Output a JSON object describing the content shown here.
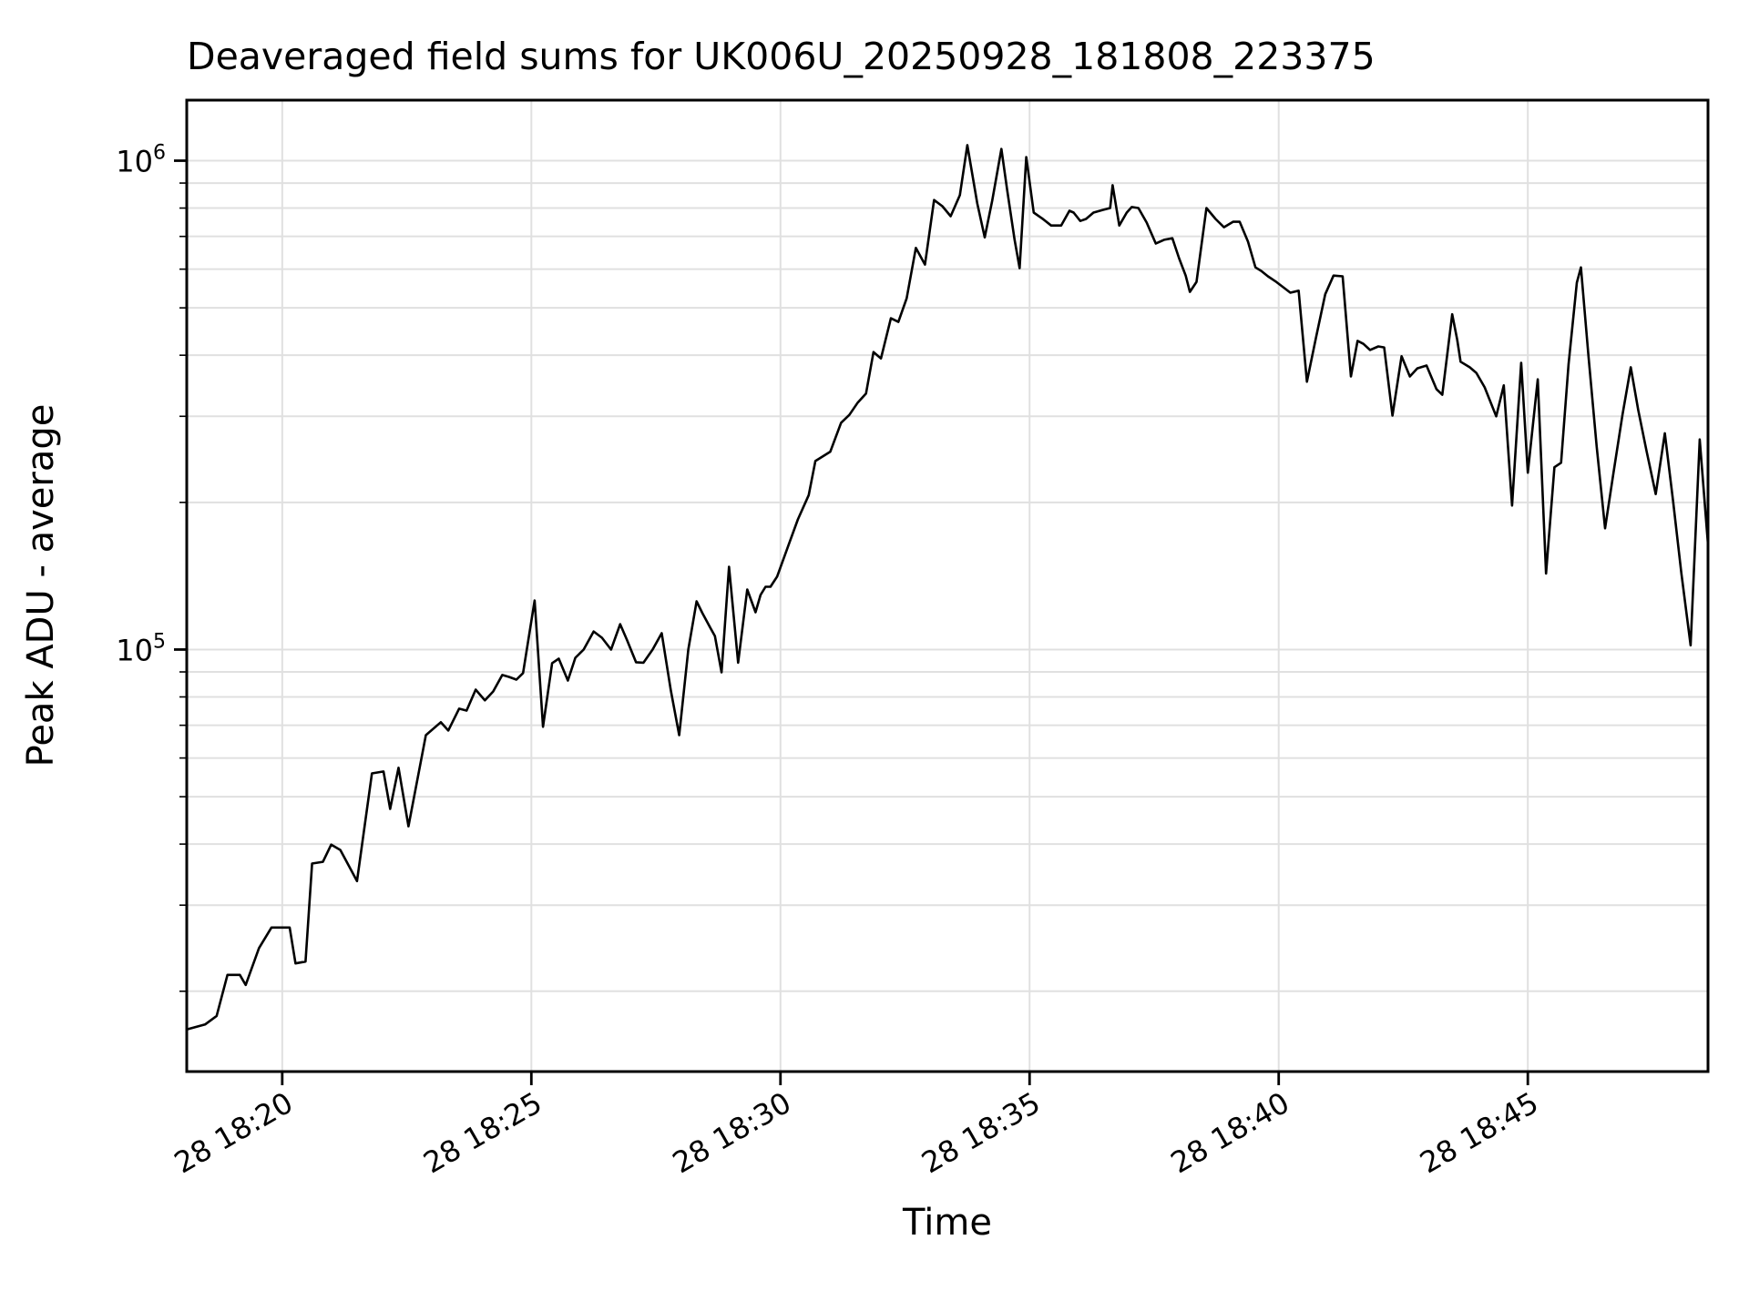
{
  "chart_data": {
    "type": "line",
    "title": "Deaveraged field sums for UK006U_20250928_181808_223375",
    "xlabel": "Time",
    "ylabel": "Peak ADU - average",
    "y_scale": "log",
    "grid": true,
    "legend_position": "none",
    "line_color": "#000000",
    "grid_color": "#e0e0e0",
    "spine_color": "#000000",
    "t_unit": "seconds after 18:00, day 28",
    "xlim": [
      1085,
      2917
    ],
    "ylim": [
      13700,
      1330000
    ],
    "x_ticks": [
      {
        "t": 1200,
        "label": "28 18:20"
      },
      {
        "t": 1500,
        "label": "28 18:25"
      },
      {
        "t": 1800,
        "label": "28 18:30"
      },
      {
        "t": 2100,
        "label": "28 18:35"
      },
      {
        "t": 2400,
        "label": "28 18:40"
      },
      {
        "t": 2700,
        "label": "28 18:45"
      }
    ],
    "y_ticks": [
      {
        "value": 100000,
        "base": "10",
        "exp": "5"
      },
      {
        "value": 1000000,
        "base": "10",
        "exp": "6"
      }
    ],
    "series": [
      {
        "name": "peak-adu-average",
        "points": [
          [
            1085,
            16700
          ],
          [
            1107,
            17100
          ],
          [
            1121,
            17800
          ],
          [
            1134,
            21600
          ],
          [
            1149,
            21600
          ],
          [
            1156,
            20600
          ],
          [
            1172,
            24500
          ],
          [
            1187,
            27000
          ],
          [
            1209,
            27000
          ],
          [
            1216,
            22800
          ],
          [
            1228,
            23000
          ],
          [
            1236,
            36500
          ],
          [
            1249,
            36800
          ],
          [
            1259,
            39900
          ],
          [
            1270,
            38900
          ],
          [
            1290,
            33600
          ],
          [
            1308,
            55800
          ],
          [
            1322,
            56300
          ],
          [
            1330,
            47200
          ],
          [
            1340,
            57300
          ],
          [
            1352,
            43500
          ],
          [
            1373,
            66800
          ],
          [
            1391,
            71000
          ],
          [
            1400,
            68300
          ],
          [
            1413,
            75700
          ],
          [
            1422,
            75000
          ],
          [
            1433,
            82800
          ],
          [
            1444,
            78700
          ],
          [
            1454,
            82100
          ],
          [
            1465,
            88700
          ],
          [
            1473,
            87900
          ],
          [
            1482,
            86800
          ],
          [
            1490,
            89500
          ],
          [
            1504,
            126000
          ],
          [
            1514,
            69500
          ],
          [
            1525,
            93800
          ],
          [
            1533,
            95800
          ],
          [
            1544,
            86400
          ],
          [
            1553,
            96200
          ],
          [
            1563,
            100000
          ],
          [
            1575,
            108900
          ],
          [
            1585,
            105700
          ],
          [
            1596,
            100000
          ],
          [
            1607,
            112700
          ],
          [
            1615,
            104800
          ],
          [
            1626,
            94200
          ],
          [
            1635,
            94000
          ],
          [
            1646,
            100000
          ],
          [
            1657,
            108000
          ],
          [
            1668,
            82500
          ],
          [
            1678,
            66800
          ],
          [
            1689,
            100000
          ],
          [
            1699,
            125500
          ],
          [
            1706,
            118700
          ],
          [
            1716,
            110400
          ],
          [
            1721,
            106600
          ],
          [
            1729,
            89800
          ],
          [
            1738,
            147700
          ],
          [
            1749,
            94000
          ],
          [
            1760,
            132700
          ],
          [
            1770,
            119200
          ],
          [
            1776,
            129300
          ],
          [
            1782,
            134400
          ],
          [
            1788,
            134400
          ],
          [
            1796,
            141000
          ],
          [
            1809,
            162400
          ],
          [
            1821,
            184600
          ],
          [
            1834,
            207000
          ],
          [
            1842,
            243000
          ],
          [
            1860,
            254000
          ],
          [
            1873,
            291000
          ],
          [
            1883,
            302000
          ],
          [
            1893,
            320000
          ],
          [
            1903,
            334000
          ],
          [
            1912,
            406000
          ],
          [
            1921,
            394000
          ],
          [
            1933,
            476000
          ],
          [
            1942,
            468000
          ],
          [
            1952,
            523000
          ],
          [
            1963,
            663000
          ],
          [
            1974,
            613000
          ],
          [
            1985,
            831000
          ],
          [
            1995,
            807000
          ],
          [
            2005,
            770000
          ],
          [
            2016,
            850000
          ],
          [
            2025,
            1076000
          ],
          [
            2037,
            818000
          ],
          [
            2046,
            697000
          ],
          [
            2055,
            828000
          ],
          [
            2066,
            1057000
          ],
          [
            2073,
            872000
          ],
          [
            2082,
            689000
          ],
          [
            2088,
            603000
          ],
          [
            2096,
            1017000
          ],
          [
            2105,
            783000
          ],
          [
            2116,
            760000
          ],
          [
            2126,
            737000
          ],
          [
            2138,
            737000
          ],
          [
            2148,
            790000
          ],
          [
            2153,
            783000
          ],
          [
            2161,
            753000
          ],
          [
            2168,
            760000
          ],
          [
            2177,
            783000
          ],
          [
            2188,
            793000
          ],
          [
            2197,
            800000
          ],
          [
            2200,
            891000
          ],
          [
            2208,
            737000
          ],
          [
            2217,
            783000
          ],
          [
            2223,
            804000
          ],
          [
            2231,
            800000
          ],
          [
            2241,
            747000
          ],
          [
            2252,
            677000
          ],
          [
            2262,
            689000
          ],
          [
            2272,
            694000
          ],
          [
            2280,
            632000
          ],
          [
            2288,
            582000
          ],
          [
            2293,
            539000
          ],
          [
            2301,
            565000
          ],
          [
            2313,
            800000
          ],
          [
            2324,
            760000
          ],
          [
            2334,
            731000
          ],
          [
            2345,
            750000
          ],
          [
            2353,
            750000
          ],
          [
            2363,
            683000
          ],
          [
            2372,
            605000
          ],
          [
            2379,
            595000
          ],
          [
            2387,
            580000
          ],
          [
            2397,
            565000
          ],
          [
            2406,
            550000
          ],
          [
            2414,
            537000
          ],
          [
            2424,
            542000
          ],
          [
            2434,
            353000
          ],
          [
            2445,
            435000
          ],
          [
            2456,
            533000
          ],
          [
            2466,
            582000
          ],
          [
            2477,
            580000
          ],
          [
            2487,
            362000
          ],
          [
            2495,
            428000
          ],
          [
            2502,
            422000
          ],
          [
            2510,
            410000
          ],
          [
            2520,
            417000
          ],
          [
            2527,
            415000
          ],
          [
            2537,
            301000
          ],
          [
            2548,
            398000
          ],
          [
            2558,
            362000
          ],
          [
            2567,
            376000
          ],
          [
            2578,
            381000
          ],
          [
            2590,
            341000
          ],
          [
            2597,
            332000
          ],
          [
            2609,
            485000
          ],
          [
            2615,
            430000
          ],
          [
            2619,
            388000
          ],
          [
            2630,
            378000
          ],
          [
            2638,
            368000
          ],
          [
            2648,
            344000
          ],
          [
            2662,
            300000
          ],
          [
            2671,
            347000
          ],
          [
            2681,
            197000
          ],
          [
            2692,
            386000
          ],
          [
            2700,
            230000
          ],
          [
            2712,
            357000
          ],
          [
            2722,
            143000
          ],
          [
            2732,
            236000
          ],
          [
            2740,
            241000
          ],
          [
            2749,
            383000
          ],
          [
            2759,
            563000
          ],
          [
            2764,
            605000
          ],
          [
            2773,
            400000
          ],
          [
            2783,
            260000
          ],
          [
            2793,
            177000
          ],
          [
            2803,
            229000
          ],
          [
            2814,
            302000
          ],
          [
            2824,
            378000
          ],
          [
            2833,
            309000
          ],
          [
            2843,
            255000
          ],
          [
            2854,
            208000
          ],
          [
            2865,
            277000
          ],
          [
            2875,
            201000
          ],
          [
            2885,
            143000
          ],
          [
            2896,
            102000
          ],
          [
            2907,
            269000
          ],
          [
            2917,
            164000
          ]
        ]
      }
    ]
  }
}
